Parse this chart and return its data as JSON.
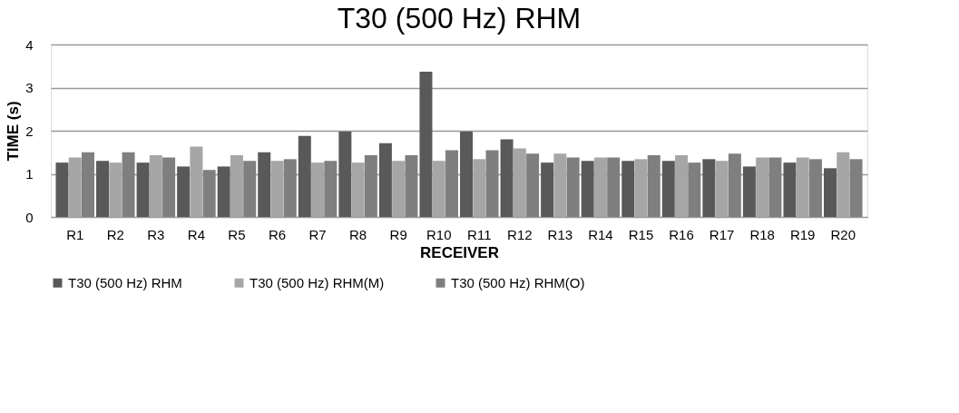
{
  "chart_data": {
    "type": "bar",
    "title": "T30 (500 Hz) RHM",
    "xlabel": "RECEIVER",
    "ylabel": "TIME (s)",
    "categories": [
      "R1",
      "R2",
      "R3",
      "R4",
      "R5",
      "R6",
      "R7",
      "R8",
      "R9",
      "R10",
      "R11",
      "R12",
      "R13",
      "R14",
      "R15",
      "R16",
      "R17",
      "R18",
      "R19",
      "R20"
    ],
    "series": [
      {
        "name": "T30 (500 Hz)  RHM",
        "color": "#595959",
        "values": [
          1.26,
          1.3,
          1.26,
          1.17,
          1.17,
          1.5,
          1.88,
          1.98,
          1.71,
          3.37,
          1.98,
          1.8,
          1.26,
          1.3,
          1.3,
          1.3,
          1.34,
          1.17,
          1.26,
          1.13
        ]
      },
      {
        "name": "T30 (500 Hz)  RHM(M)",
        "color": "#a6a6a6",
        "values": [
          1.38,
          1.26,
          1.43,
          1.63,
          1.43,
          1.3,
          1.26,
          1.26,
          1.3,
          1.3,
          1.34,
          1.59,
          1.47,
          1.38,
          1.34,
          1.43,
          1.3,
          1.38,
          1.38,
          1.5
        ]
      },
      {
        "name": "T30 (500 Hz)  RHM(O)",
        "color": "#7f7f7f",
        "values": [
          1.5,
          1.5,
          1.38,
          1.09,
          1.3,
          1.34,
          1.3,
          1.43,
          1.43,
          1.55,
          1.55,
          1.47,
          1.38,
          1.38,
          1.43,
          1.26,
          1.47,
          1.38,
          1.34,
          1.34
        ]
      }
    ],
    "ylim": [
      0,
      4
    ],
    "yticks": [
      0,
      1,
      2,
      3,
      4
    ],
    "grid": "y",
    "legend": "bottom"
  }
}
